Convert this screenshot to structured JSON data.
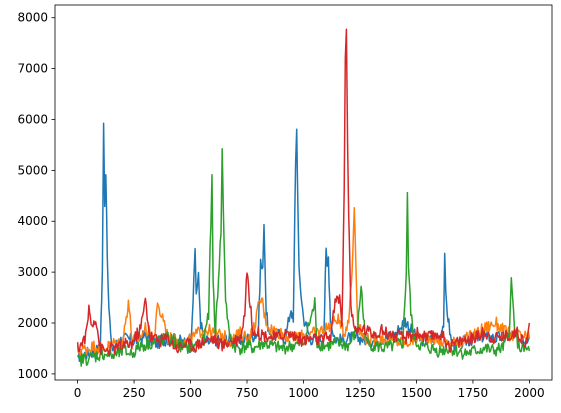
{
  "chart_data": {
    "type": "line",
    "title": "",
    "xlabel": "",
    "ylabel": "",
    "xlim": [
      -100,
      2100
    ],
    "ylim": [
      880,
      8250
    ],
    "grid": false,
    "x_ticks": [
      0,
      250,
      500,
      750,
      1000,
      1250,
      1500,
      1750,
      2000
    ],
    "y_ticks": [
      1000,
      2000,
      3000,
      4000,
      5000,
      6000,
      7000,
      8000
    ],
    "x_tick_labels": [
      "0",
      "250",
      "500",
      "750",
      "1000",
      "1250",
      "1500",
      "1750",
      "2000"
    ],
    "y_tick_labels": [
      "1000",
      "2000",
      "3000",
      "4000",
      "5000",
      "6000",
      "7000",
      "8000"
    ],
    "series": [
      {
        "color": "#1f77b4",
        "x": [
          0,
          40,
          80,
          100,
          110,
          115,
          120,
          125,
          135,
          150,
          175,
          200,
          250,
          300,
          350,
          400,
          450,
          500,
          515,
          520,
          525,
          535,
          545,
          560,
          600,
          650,
          700,
          750,
          800,
          810,
          820,
          825,
          835,
          850,
          880,
          920,
          945,
          955,
          965,
          970,
          980,
          1000,
          1030,
          1060,
          1090,
          1100,
          1105,
          1110,
          1120,
          1140,
          1170,
          1200,
          1250,
          1300,
          1350,
          1400,
          1450,
          1500,
          1550,
          1600,
          1620,
          1625,
          1630,
          1640,
          1655,
          1680,
          1720,
          1760,
          1800,
          1850,
          1900,
          1950,
          2000
        ],
        "y": [
          1350,
          1400,
          1450,
          1500,
          3000,
          5900,
          4400,
          5000,
          2600,
          1500,
          1600,
          1700,
          1650,
          1750,
          1600,
          1700,
          1650,
          1550,
          2800,
          3450,
          2600,
          2900,
          2000,
          1650,
          1600,
          1700,
          1650,
          1700,
          1800,
          3200,
          3000,
          4050,
          2200,
          1700,
          1800,
          1700,
          2300,
          2000,
          5200,
          5800,
          3000,
          2100,
          1700,
          1650,
          1750,
          3400,
          3100,
          3300,
          2000,
          1700,
          1650,
          1700,
          1700,
          1650,
          1700,
          1750,
          2050,
          1700,
          1650,
          1700,
          2000,
          3250,
          2500,
          2100,
          1600,
          1550,
          1650,
          1700,
          1750,
          1700,
          1750,
          1700,
          1700
        ]
      },
      {
        "color": "#ff7f0e",
        "x": [
          0,
          40,
          80,
          120,
          160,
          200,
          215,
          225,
          240,
          260,
          280,
          300,
          340,
          350,
          365,
          380,
          400,
          440,
          480,
          520,
          560,
          600,
          640,
          680,
          720,
          760,
          780,
          800,
          815,
          830,
          850,
          900,
          950,
          1000,
          1050,
          1100,
          1130,
          1150,
          1180,
          1200,
          1215,
          1225,
          1240,
          1260,
          1300,
          1350,
          1400,
          1450,
          1500,
          1550,
          1600,
          1650,
          1700,
          1750,
          1800,
          1850,
          1900,
          1950,
          2000
        ],
        "y": [
          1450,
          1500,
          1550,
          1500,
          1600,
          1650,
          2100,
          2450,
          1700,
          1650,
          1750,
          1900,
          1700,
          2300,
          2200,
          2100,
          1700,
          1650,
          1600,
          1750,
          1900,
          1800,
          1750,
          1650,
          1800,
          1700,
          1900,
          2300,
          2500,
          2100,
          1900,
          1800,
          1700,
          1750,
          1800,
          1900,
          2000,
          2100,
          1800,
          2100,
          3000,
          4300,
          2000,
          1750,
          1650,
          1700,
          1650,
          1600,
          1700,
          1750,
          1650,
          1600,
          1650,
          1750,
          1900,
          2000,
          1800,
          1750,
          1700
        ]
      },
      {
        "color": "#2ca02c",
        "x": [
          0,
          40,
          80,
          120,
          160,
          200,
          240,
          280,
          320,
          360,
          400,
          440,
          480,
          520,
          560,
          580,
          590,
          595,
          600,
          610,
          620,
          635,
          640,
          645,
          655,
          670,
          690,
          720,
          750,
          780,
          820,
          860,
          900,
          950,
          1000,
          1040,
          1050,
          1060,
          1100,
          1150,
          1200,
          1240,
          1255,
          1265,
          1280,
          1320,
          1360,
          1400,
          1440,
          1455,
          1460,
          1465,
          1475,
          1490,
          1520,
          1560,
          1600,
          1640,
          1680,
          1720,
          1760,
          1800,
          1840,
          1880,
          1910,
          1920,
          1930,
          1940,
          1960,
          2000
        ],
        "y": [
          1250,
          1300,
          1350,
          1400,
          1350,
          1450,
          1400,
          1550,
          1600,
          1650,
          1700,
          1600,
          1500,
          1550,
          1650,
          2200,
          4000,
          4900,
          2800,
          1800,
          2600,
          3800,
          5400,
          4200,
          2500,
          1800,
          1550,
          1500,
          1550,
          1500,
          1600,
          1550,
          1500,
          1550,
          1600,
          2200,
          2400,
          1600,
          1550,
          1600,
          1550,
          1900,
          2750,
          2100,
          1600,
          1550,
          1500,
          1550,
          1600,
          3000,
          4600,
          3100,
          2200,
          1650,
          1550,
          1500,
          1450,
          1500,
          1450,
          1400,
          1450,
          1500,
          1450,
          1500,
          1800,
          2800,
          2200,
          1700,
          1500,
          1450
        ]
      },
      {
        "color": "#d62728",
        "x": [
          0,
          20,
          40,
          50,
          60,
          80,
          100,
          120,
          160,
          200,
          240,
          280,
          300,
          320,
          360,
          400,
          440,
          480,
          520,
          560,
          600,
          640,
          680,
          720,
          740,
          750,
          760,
          775,
          800,
          840,
          880,
          920,
          960,
          1000,
          1040,
          1080,
          1120,
          1140,
          1160,
          1170,
          1180,
          1185,
          1190,
          1195,
          1200,
          1210,
          1230,
          1260,
          1300,
          1350,
          1400,
          1450,
          1500,
          1550,
          1600,
          1650,
          1700,
          1750,
          1800,
          1850,
          1900,
          1950,
          1990,
          2000
        ],
        "y": [
          1500,
          1600,
          1800,
          2300,
          2000,
          2100,
          1500,
          1450,
          1500,
          1550,
          1600,
          1900,
          2450,
          1750,
          1650,
          1700,
          1500,
          1600,
          1550,
          1650,
          1700,
          1550,
          1650,
          1700,
          2200,
          3100,
          2500,
          1900,
          1800,
          1750,
          1700,
          1800,
          1750,
          1650,
          1700,
          1650,
          1750,
          2400,
          2500,
          2000,
          4500,
          7200,
          7850,
          5600,
          4200,
          2300,
          1800,
          1900,
          1800,
          1850,
          1750,
          1700,
          1800,
          1700,
          1800,
          1550,
          1650,
          1700,
          1800,
          1700,
          1750,
          1800,
          1600,
          2000
        ]
      }
    ]
  }
}
